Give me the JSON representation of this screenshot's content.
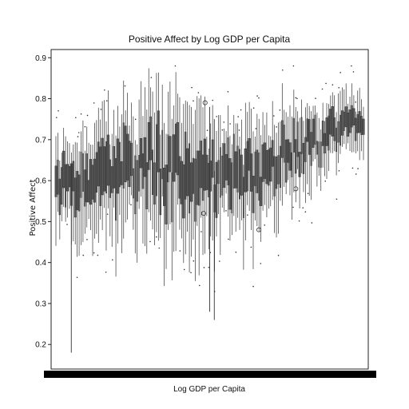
{
  "chart_data": {
    "type": "box",
    "title": "Positive Affect by Log GDP per Capita",
    "xlabel": "Log GDP per Capita",
    "ylabel": "Positive Affect",
    "ylim": [
      0.14,
      0.92
    ],
    "yticks": [
      0.2,
      0.3,
      0.4,
      0.5,
      0.6,
      0.7,
      0.8,
      0.9
    ],
    "ytick_labels": [
      "0.2",
      "0.3",
      "0.4",
      "0.5",
      "0.6",
      "0.7",
      "0.8",
      "0.9"
    ],
    "x_categories_count": 160,
    "x_tick_labels_overlapping": true,
    "grid": false,
    "legend": "none",
    "color": "#333333",
    "trend": [
      [
        0.0,
        0.58,
        0.12
      ],
      [
        0.08,
        0.6,
        0.13
      ],
      [
        0.15,
        0.62,
        0.15
      ],
      [
        0.25,
        0.64,
        0.18
      ],
      [
        0.35,
        0.63,
        0.2
      ],
      [
        0.45,
        0.61,
        0.18
      ],
      [
        0.55,
        0.6,
        0.15
      ],
      [
        0.65,
        0.62,
        0.14
      ],
      [
        0.75,
        0.66,
        0.12
      ],
      [
        0.85,
        0.7,
        0.1
      ],
      [
        0.95,
        0.74,
        0.08
      ],
      [
        1.0,
        0.73,
        0.07
      ]
    ],
    "notable_whiskers": [
      {
        "position": 0.05,
        "low": 0.18,
        "high": 0.64
      },
      {
        "position": 0.515,
        "low": 0.26,
        "high": 0.75
      },
      {
        "position": 0.5,
        "low": 0.28,
        "high": 0.78
      }
    ],
    "notable_outliers": [
      {
        "position": 0.48,
        "value": 0.52
      },
      {
        "position": 0.485,
        "value": 0.79
      },
      {
        "position": 0.66,
        "value": 0.48
      },
      {
        "position": 0.78,
        "value": 0.58
      }
    ]
  }
}
